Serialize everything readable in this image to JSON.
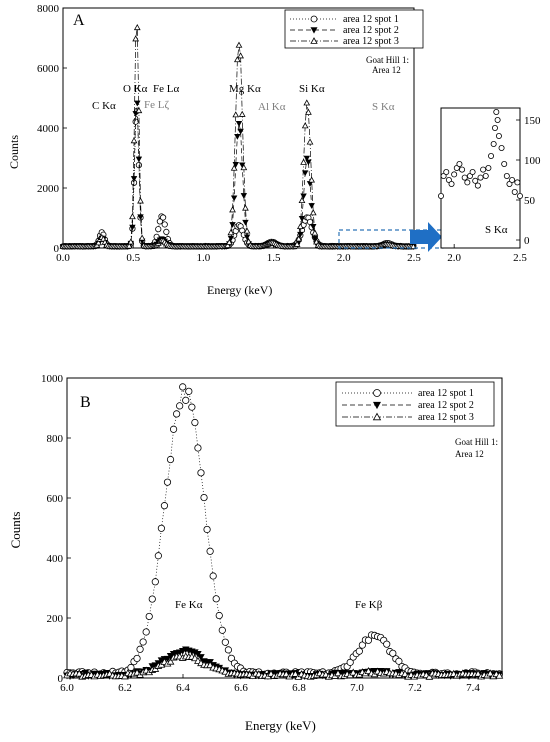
{
  "chart_data": [
    {
      "type": "scatter",
      "panel_label": "A",
      "xlabel": "Energy (keV)",
      "ylabel": "Counts",
      "xlim": [
        0.0,
        2.5
      ],
      "ylim": [
        0,
        8000
      ],
      "xticks": [
        "0.0",
        "0.5",
        "1.0",
        "1.5",
        "2.0",
        "2.5"
      ],
      "yticks": [
        "0",
        "2000",
        "4000",
        "6000",
        "8000"
      ],
      "note_lines": [
        "Goat Hill 1:",
        "Area 12"
      ],
      "legend": [
        "area 12 spot 1",
        "area 12 spot 2",
        "area 12 spot 3"
      ],
      "annotations": [
        {
          "text": "C Kα",
          "color": "#000000"
        },
        {
          "text": "O Kα",
          "color": "#000000"
        },
        {
          "text": "Fe Lα",
          "color": "#000000"
        },
        {
          "text": "Fe Lζ",
          "color": "#7f7f7f"
        },
        {
          "text": "Mg Kα",
          "color": "#000000"
        },
        {
          "text": "Al Kα",
          "color": "#7f7f7f"
        },
        {
          "text": "Si Kα",
          "color": "#000000"
        },
        {
          "text": "S Kα",
          "color": "#7f7f7f"
        }
      ],
      "series": [
        {
          "name": "area 12 spot 1",
          "marker": "circle-open",
          "line": "dotted",
          "peaks": [
            [
              0.277,
              450,
              0.018
            ],
            [
              0.525,
              4700,
              0.015
            ],
            [
              0.705,
              1000,
              0.025
            ],
            [
              1.254,
              700,
              0.03
            ],
            [
              1.487,
              150,
              0.03
            ],
            [
              1.74,
              950,
              0.035
            ],
            [
              2.31,
              100,
              0.03
            ]
          ],
          "baseline": 60
        },
        {
          "name": "area 12 spot 2",
          "marker": "triangle-down-filled",
          "line": "dashed",
          "peaks": [
            [
              0.277,
              280,
              0.018
            ],
            [
              0.525,
              5000,
              0.015
            ],
            [
              0.705,
              250,
              0.025
            ],
            [
              1.254,
              4200,
              0.025
            ],
            [
              1.487,
              120,
              0.03
            ],
            [
              1.74,
              2900,
              0.025
            ],
            [
              2.31,
              60,
              0.03
            ]
          ],
          "baseline": 50
        },
        {
          "name": "area 12 spot 3",
          "marker": "triangle-up-open",
          "line": "dashdot",
          "peaks": [
            [
              0.277,
              300,
              0.018
            ],
            [
              0.525,
              7700,
              0.015
            ],
            [
              0.705,
              200,
              0.025
            ],
            [
              1.254,
              6800,
              0.025
            ],
            [
              1.487,
              130,
              0.03
            ],
            [
              1.74,
              4800,
              0.025
            ],
            [
              2.31,
              70,
              0.03
            ]
          ],
          "baseline": 50
        }
      ]
    },
    {
      "type": "scatter",
      "panel_label": "",
      "xlim": [
        1.9,
        2.5
      ],
      "ylim": [
        -10,
        165
      ],
      "xticks": [
        "2.0",
        "2.5"
      ],
      "yticks": [
        "0",
        "50",
        "100",
        "150"
      ],
      "annotations": [
        {
          "text": "S Kα",
          "color": "#000000"
        }
      ],
      "series": [
        {
          "name": "area 12 spot 1",
          "marker": "circle-open",
          "x": [
            1.9,
            1.92,
            1.94,
            1.96,
            1.98,
            2.0,
            2.02,
            2.04,
            2.06,
            2.08,
            2.1,
            2.12,
            2.14,
            2.16,
            2.18,
            2.2,
            2.22,
            2.24,
            2.26,
            2.28,
            2.3,
            2.31,
            2.32,
            2.33,
            2.34,
            2.36,
            2.38,
            2.4,
            2.42,
            2.44,
            2.46,
            2.48,
            2.5
          ],
          "y": [
            55,
            80,
            85,
            75,
            70,
            82,
            90,
            95,
            88,
            78,
            72,
            80,
            85,
            74,
            68,
            78,
            88,
            80,
            90,
            105,
            120,
            140,
            160,
            150,
            130,
            115,
            95,
            80,
            70,
            75,
            60,
            72,
            55
          ]
        }
      ]
    },
    {
      "type": "scatter",
      "panel_label": "B",
      "xlabel": "Energy (keV)",
      "ylabel": "Counts",
      "xlim": [
        6.0,
        7.5
      ],
      "ylim": [
        0,
        1000
      ],
      "xticks": [
        "6.0",
        "6.2",
        "6.4",
        "6.6",
        "6.8",
        "7.0",
        "7.2",
        "7.4"
      ],
      "yticks": [
        "0",
        "200",
        "400",
        "600",
        "800",
        "1000"
      ],
      "note_lines": [
        "Goat Hill 1:",
        "Area 12"
      ],
      "legend": [
        "area 12 spot 1",
        "area 12 spot 2",
        "area 12 spot 3"
      ],
      "annotations": [
        {
          "text": "Fe Kα",
          "color": "#000000"
        },
        {
          "text": "Fe Kβ",
          "color": "#000000"
        }
      ],
      "series": [
        {
          "name": "area 12 spot 1",
          "marker": "circle-open",
          "line": "dotted",
          "peaks": [
            [
              6.405,
              940,
              0.068
            ],
            [
              7.06,
              125,
              0.055
            ]
          ],
          "baseline": 15
        },
        {
          "name": "area 12 spot 2",
          "marker": "triangle-down-filled",
          "line": "dashed",
          "peaks": [
            [
              6.405,
              80,
              0.07
            ],
            [
              7.06,
              10,
              0.05
            ]
          ],
          "baseline": 12
        },
        {
          "name": "area 12 spot 3",
          "marker": "triangle-up-open",
          "line": "dashdot",
          "peaks": [
            [
              6.405,
              62,
              0.07
            ],
            [
              7.06,
              8,
              0.05
            ]
          ],
          "baseline": 10
        }
      ]
    }
  ]
}
